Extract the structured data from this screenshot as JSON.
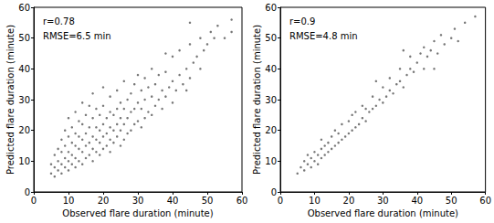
{
  "chart_data": [
    {
      "type": "scatter",
      "color": "#555555",
      "marker": "circle",
      "xlabel": "Observed flare duration (minute)",
      "ylabel": "Predicted flare duration (minute)",
      "annotations": [
        "r=0.78",
        "RMSE=6.5 min"
      ],
      "xlim": [
        0,
        60
      ],
      "xticks": [
        0,
        10,
        20,
        30,
        40,
        50,
        60
      ],
      "ylim": [
        0,
        60
      ],
      "yticks": [
        0,
        10,
        20,
        30,
        40,
        50,
        60
      ],
      "x": [
        5,
        5,
        6,
        6,
        6,
        7,
        7,
        7,
        8,
        8,
        8,
        8,
        9,
        9,
        9,
        9,
        10,
        10,
        10,
        10,
        10,
        11,
        11,
        11,
        11,
        12,
        12,
        12,
        12,
        12,
        13,
        13,
        13,
        13,
        14,
        14,
        14,
        14,
        14,
        15,
        15,
        15,
        15,
        16,
        16,
        16,
        16,
        17,
        17,
        17,
        17,
        17,
        18,
        18,
        18,
        18,
        19,
        19,
        19,
        19,
        20,
        20,
        20,
        20,
        20,
        21,
        21,
        21,
        22,
        22,
        22,
        22,
        22,
        23,
        23,
        23,
        24,
        24,
        24,
        24,
        25,
        25,
        25,
        25,
        26,
        26,
        26,
        26,
        27,
        27,
        27,
        28,
        28,
        28,
        29,
        29,
        29,
        30,
        30,
        30,
        31,
        31,
        31,
        32,
        32,
        32,
        33,
        33,
        34,
        34,
        34,
        35,
        35,
        36,
        36,
        37,
        37,
        38,
        38,
        39,
        40,
        40,
        40,
        41,
        42,
        42,
        43,
        44,
        45,
        45,
        46,
        47,
        48,
        48,
        49,
        50,
        51,
        52,
        53,
        55,
        57,
        57,
        45,
        38,
        44
      ],
      "values": [
        6,
        9,
        5,
        8,
        12,
        7,
        10,
        14,
        6,
        9,
        13,
        17,
        8,
        11,
        15,
        20,
        7,
        10,
        13,
        18,
        24,
        9,
        12,
        16,
        21,
        8,
        11,
        15,
        19,
        26,
        10,
        14,
        18,
        23,
        9,
        13,
        17,
        22,
        29,
        11,
        15,
        19,
        25,
        12,
        16,
        21,
        28,
        10,
        14,
        18,
        24,
        32,
        13,
        17,
        21,
        27,
        12,
        16,
        20,
        25,
        14,
        18,
        22,
        28,
        34,
        15,
        19,
        24,
        13,
        17,
        21,
        26,
        31,
        16,
        20,
        25,
        18,
        22,
        27,
        33,
        15,
        20,
        24,
        29,
        17,
        22,
        27,
        36,
        19,
        24,
        30,
        20,
        26,
        32,
        22,
        27,
        35,
        23,
        29,
        38,
        21,
        27,
        33,
        24,
        30,
        37,
        26,
        34,
        25,
        31,
        40,
        28,
        35,
        30,
        38,
        27,
        33,
        31,
        39,
        34,
        29,
        36,
        44,
        33,
        38,
        46,
        35,
        40,
        37,
        48,
        42,
        44,
        40,
        50,
        46,
        48,
        52,
        50,
        54,
        50,
        52,
        56,
        55,
        45,
        33
      ]
    },
    {
      "type": "scatter",
      "color": "#555555",
      "marker": "circle",
      "xlabel": "Observed flare duration (minute)",
      "ylabel": "Predicted flare duration (minute)",
      "annotations": [
        "r=0.9",
        "RMSE=4.8 min"
      ],
      "xlim": [
        0,
        60
      ],
      "xticks": [
        0,
        10,
        20,
        30,
        40,
        50,
        60
      ],
      "ylim": [
        0,
        60
      ],
      "yticks": [
        0,
        10,
        20,
        30,
        40,
        50,
        60
      ],
      "x": [
        5,
        6,
        7,
        7,
        8,
        8,
        9,
        9,
        10,
        10,
        11,
        11,
        12,
        12,
        12,
        13,
        13,
        14,
        14,
        15,
        15,
        16,
        16,
        17,
        17,
        18,
        18,
        19,
        20,
        20,
        21,
        21,
        22,
        22,
        23,
        24,
        24,
        25,
        25,
        26,
        27,
        27,
        28,
        29,
        30,
        30,
        31,
        32,
        32,
        33,
        34,
        35,
        35,
        36,
        37,
        38,
        38,
        39,
        40,
        41,
        42,
        42,
        43,
        44,
        45,
        46,
        47,
        48,
        50,
        51,
        52,
        54,
        57,
        36,
        28,
        45
      ],
      "values": [
        6,
        8,
        7,
        10,
        9,
        12,
        8,
        11,
        10,
        13,
        9,
        12,
        11,
        14,
        17,
        12,
        15,
        13,
        16,
        14,
        18,
        15,
        20,
        16,
        19,
        17,
        22,
        18,
        19,
        23,
        20,
        25,
        21,
        26,
        22,
        24,
        28,
        23,
        27,
        26,
        27,
        31,
        28,
        30,
        29,
        34,
        31,
        33,
        37,
        32,
        35,
        36,
        40,
        34,
        38,
        40,
        44,
        39,
        42,
        45,
        40,
        47,
        44,
        46,
        49,
        45,
        51,
        48,
        50,
        53,
        49,
        55,
        57,
        46,
        36,
        40
      ]
    }
  ]
}
